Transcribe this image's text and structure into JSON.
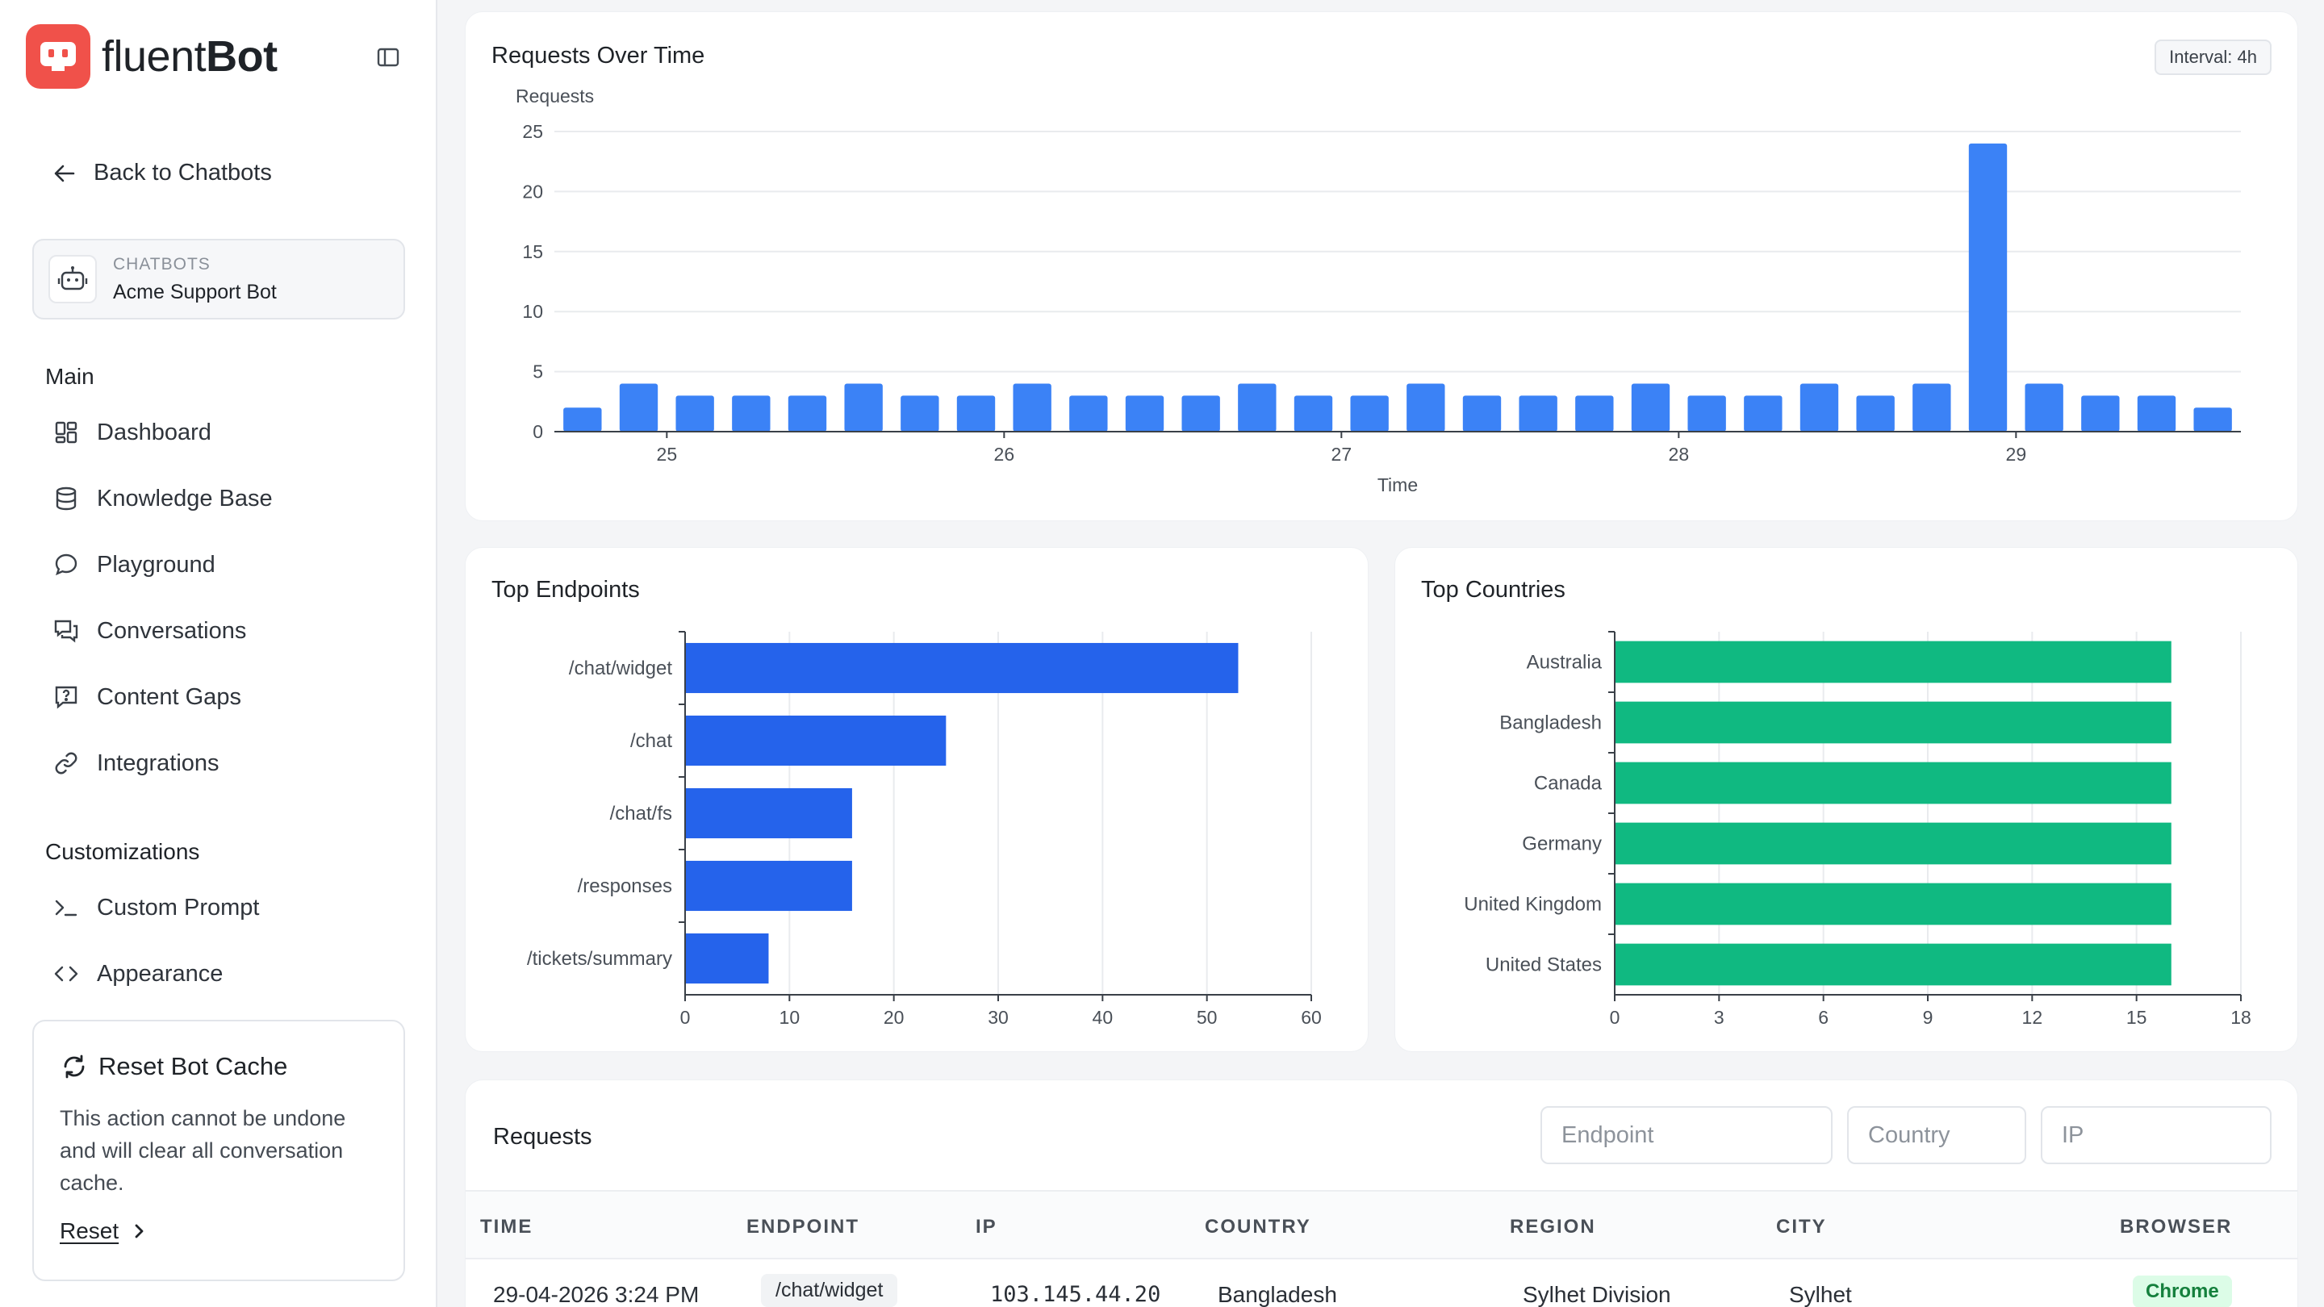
{
  "app": {
    "name_light": "fluent",
    "name_bold": "Bot"
  },
  "sidebar": {
    "back_label": "Back to Chatbots",
    "bot_card": {
      "kicker": "CHATBOTS",
      "name": "Acme Support Bot"
    },
    "sections": {
      "main": "Main",
      "customizations": "Customizations"
    },
    "main_items": [
      {
        "label": "Dashboard",
        "icon": "dashboard-icon"
      },
      {
        "label": "Knowledge Base",
        "icon": "database-icon"
      },
      {
        "label": "Playground",
        "icon": "chat-bubble-icon"
      },
      {
        "label": "Conversations",
        "icon": "conversations-icon"
      },
      {
        "label": "Content Gaps",
        "icon": "question-message-icon"
      },
      {
        "label": "Integrations",
        "icon": "link-icon"
      }
    ],
    "custom_items": [
      {
        "label": "Custom Prompt",
        "icon": "terminal-icon"
      },
      {
        "label": "Appearance",
        "icon": "code-icon"
      }
    ],
    "reset_card": {
      "title": "Reset Bot Cache",
      "description": "This action cannot be undone and will clear all conversation cache.",
      "link_label": "Reset"
    }
  },
  "requests_over_time": {
    "title": "Requests Over Time",
    "interval_badge": "Interval: 4h"
  },
  "top_endpoints": {
    "title": "Top Endpoints"
  },
  "top_countries": {
    "title": "Top Countries"
  },
  "requests_table": {
    "title": "Requests",
    "filters": {
      "endpoint_placeholder": "Endpoint",
      "country_placeholder": "Country",
      "ip_placeholder": "IP"
    },
    "columns": [
      "TIME",
      "ENDPOINT",
      "IP",
      "COUNTRY",
      "REGION",
      "CITY",
      "BROWSER"
    ],
    "rows": [
      {
        "time": "29-04-2026 3:24 PM",
        "endpoint": "/chat/widget",
        "ip": "103.145.44.20",
        "country": "Bangladesh",
        "region": "Sylhet Division",
        "city": "Sylhet",
        "browser": "Chrome"
      }
    ]
  },
  "colors": {
    "accent_blue": "#3b82f6",
    "endpoint_blue": "#2563eb",
    "country_green": "#10b981",
    "logo_red": "#f0514a"
  },
  "chart_data": [
    {
      "type": "bar",
      "ylabel": "Requests",
      "xlabel": "Time",
      "ylim": [
        0,
        25
      ],
      "yticks": [
        0,
        5,
        10,
        15,
        20,
        25
      ],
      "xtick_labels": [
        "25",
        "26",
        "27",
        "28",
        "29"
      ],
      "xtick_bar_index": [
        2,
        8,
        14,
        20,
        26
      ],
      "grid": true,
      "values": [
        2,
        4,
        3,
        3,
        3,
        4,
        3,
        3,
        4,
        3,
        3,
        3,
        4,
        3,
        3,
        4,
        3,
        3,
        3,
        4,
        3,
        3,
        4,
        3,
        4,
        24,
        4,
        3,
        3,
        2
      ]
    },
    {
      "type": "bar",
      "orientation": "horizontal",
      "categories": [
        "/chat/widget",
        "/chat",
        "/chat/fs",
        "/responses",
        "/tickets/summary"
      ],
      "values": [
        53,
        25,
        16,
        16,
        8
      ],
      "xlim": [
        0,
        60
      ],
      "xticks": [
        0,
        10,
        20,
        30,
        40,
        50,
        60
      ],
      "grid": true
    },
    {
      "type": "bar",
      "orientation": "horizontal",
      "categories": [
        "Australia",
        "Bangladesh",
        "Canada",
        "Germany",
        "United Kingdom",
        "United States"
      ],
      "values": [
        16,
        16,
        16,
        16,
        16,
        16
      ],
      "xlim": [
        0,
        18
      ],
      "xticks": [
        0,
        3,
        6,
        9,
        12,
        15,
        18
      ],
      "grid": true
    }
  ]
}
